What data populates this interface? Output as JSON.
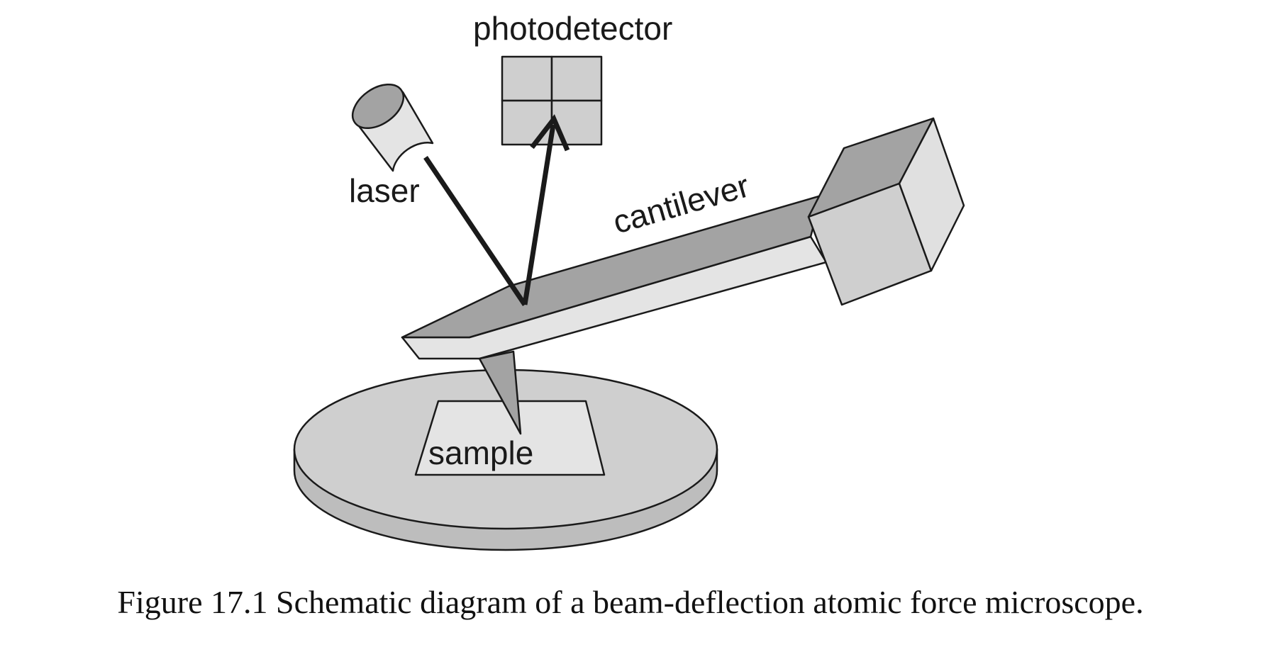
{
  "labels": {
    "photodetector": "photodetector",
    "laser": "laser",
    "cantilever": "cantilever",
    "sample": "sample"
  },
  "caption": "Figure 17.1  Schematic diagram of a beam-deflection atomic force microscope.",
  "colors": {
    "outline": "#1a1a1a",
    "light_gray": "#e4e4e4",
    "mid_gray": "#cfcfcf",
    "dark_gray": "#a3a3a3",
    "disk_edge": "#bdbdbd"
  }
}
